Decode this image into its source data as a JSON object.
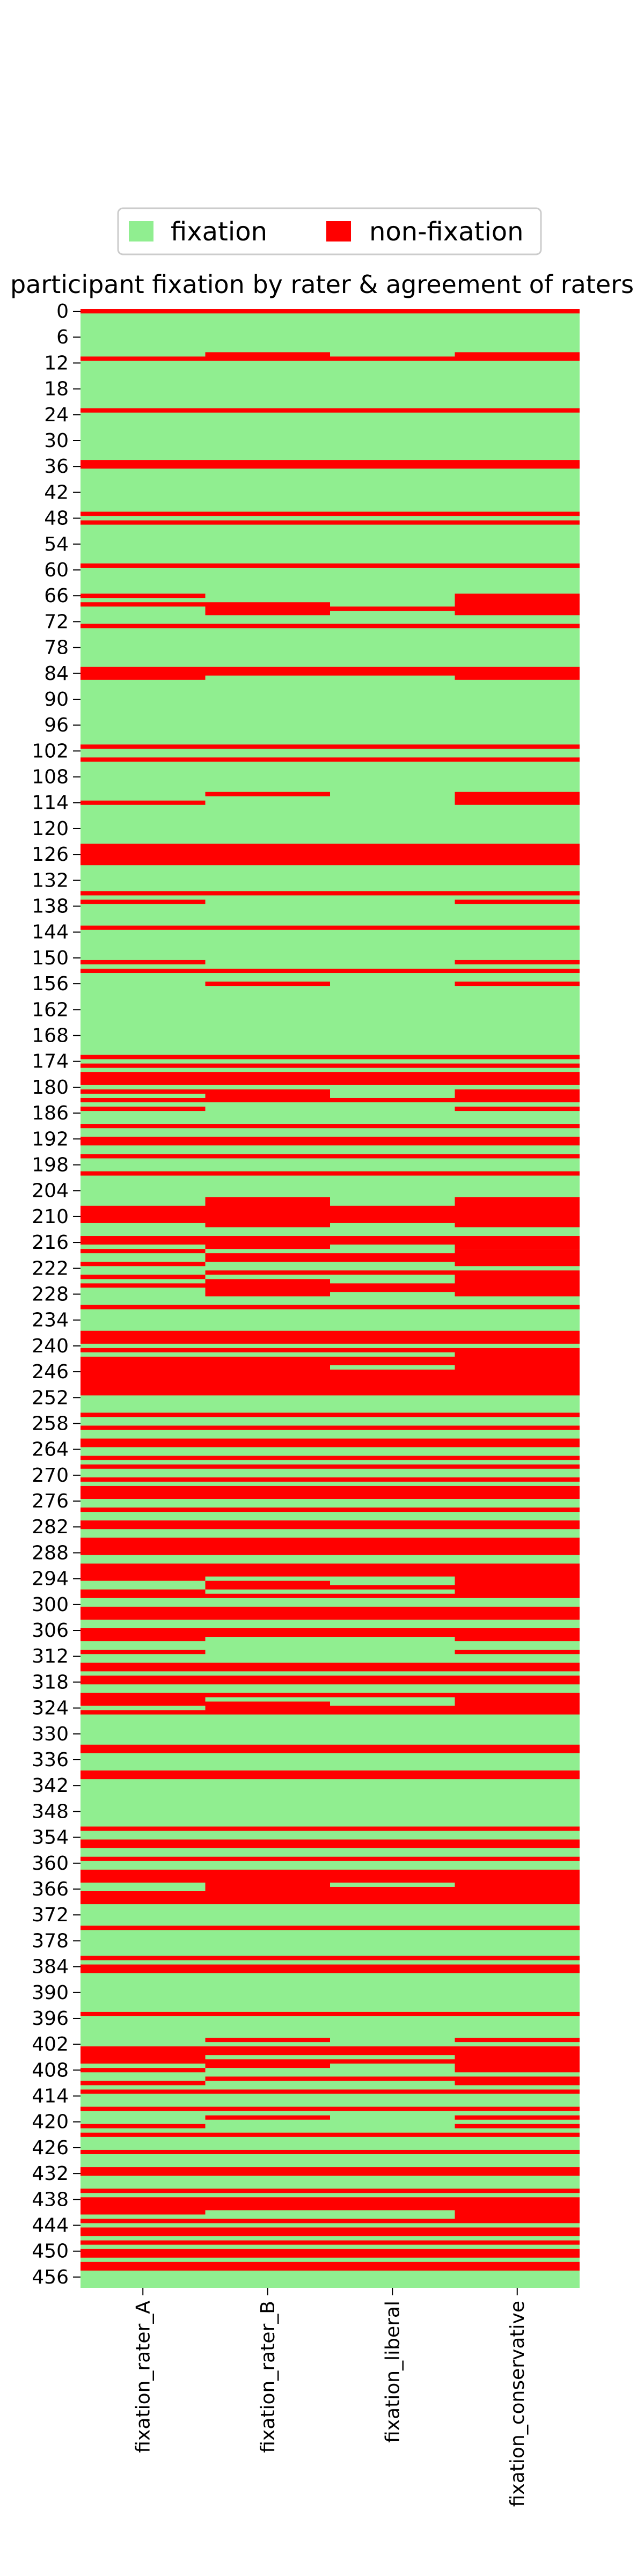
{
  "chart_data": {
    "type": "heatmap",
    "title": "participant fixation by rater & agreement of raters",
    "legend": {
      "placement": "top-center",
      "entries": [
        {
          "label": "fixation",
          "color": "#90ee90"
        },
        {
          "label": "non-fixation",
          "color": "#ff0000"
        }
      ]
    },
    "columns": [
      "fixation_rater_A",
      "fixation_rater_B",
      "fixation_liberal",
      "fixation_conservative"
    ],
    "y_tick_labels": [
      "0",
      "6",
      "12",
      "18",
      "24",
      "30",
      "36",
      "42",
      "48",
      "54",
      "60",
      "66",
      "72",
      "78",
      "84",
      "90",
      "96",
      "102",
      "108",
      "114",
      "120",
      "126",
      "132",
      "138",
      "144",
      "150",
      "156",
      "162",
      "168",
      "174",
      "180",
      "186",
      "192",
      "198",
      "204",
      "210",
      "216",
      "222",
      "228",
      "234",
      "240",
      "246",
      "252",
      "258",
      "264",
      "270",
      "276",
      "282",
      "288",
      "294",
      "300",
      "306",
      "312",
      "318",
      "324",
      "330",
      "336",
      "342",
      "348",
      "354",
      "360",
      "366",
      "372",
      "378",
      "384",
      "390",
      "396",
      "402",
      "408",
      "414",
      "420",
      "426",
      "432",
      "438",
      "444",
      "450",
      "456"
    ],
    "row_count": 459,
    "category_colors": {
      "fixation": "#90ee90",
      "non-fixation": "#ff0000"
    },
    "non_fixation_ranges": {
      "fixation_rater_A": [
        [
          0,
          0
        ],
        [
          11,
          11
        ],
        [
          23,
          23
        ],
        [
          35,
          36
        ],
        [
          47,
          47
        ],
        [
          49,
          49
        ],
        [
          59,
          59
        ],
        [
          66,
          66
        ],
        [
          68,
          68
        ],
        [
          73,
          73
        ],
        [
          83,
          85
        ],
        [
          101,
          101
        ],
        [
          104,
          104
        ],
        [
          114,
          114
        ],
        [
          124,
          128
        ],
        [
          135,
          135
        ],
        [
          137,
          137
        ],
        [
          143,
          143
        ],
        [
          151,
          151
        ],
        [
          153,
          153
        ],
        [
          173,
          173
        ],
        [
          175,
          175
        ],
        [
          177,
          179
        ],
        [
          181,
          181
        ],
        [
          183,
          183
        ],
        [
          185,
          185
        ],
        [
          189,
          189
        ],
        [
          192,
          193
        ],
        [
          196,
          196
        ],
        [
          200,
          200
        ],
        [
          208,
          211
        ],
        [
          215,
          216
        ],
        [
          218,
          218
        ],
        [
          221,
          221
        ],
        [
          224,
          224
        ],
        [
          226,
          226
        ],
        [
          231,
          231
        ],
        [
          237,
          239
        ],
        [
          241,
          241
        ],
        [
          243,
          251
        ],
        [
          256,
          256
        ],
        [
          259,
          259
        ],
        [
          262,
          263
        ],
        [
          266,
          266
        ],
        [
          268,
          268
        ],
        [
          271,
          271
        ],
        [
          273,
          275
        ],
        [
          278,
          278
        ],
        [
          281,
          282
        ],
        [
          285,
          288
        ],
        [
          291,
          294
        ],
        [
          297,
          298
        ],
        [
          301,
          303
        ],
        [
          306,
          308
        ],
        [
          311,
          311
        ],
        [
          314,
          315
        ],
        [
          317,
          318
        ],
        [
          321,
          323
        ],
        [
          325,
          325
        ],
        [
          333,
          334
        ],
        [
          339,
          340
        ],
        [
          352,
          352
        ],
        [
          355,
          356
        ],
        [
          359,
          359
        ],
        [
          362,
          364
        ],
        [
          367,
          369
        ],
        [
          375,
          375
        ],
        [
          382,
          382
        ],
        [
          384,
          385
        ],
        [
          395,
          395
        ],
        [
          403,
          406
        ],
        [
          408,
          408
        ],
        [
          411,
          411
        ],
        [
          413,
          413
        ],
        [
          417,
          417
        ],
        [
          421,
          421
        ],
        [
          423,
          423
        ],
        [
          427,
          427
        ],
        [
          431,
          432
        ],
        [
          436,
          436
        ],
        [
          438,
          441
        ],
        [
          443,
          443
        ],
        [
          445,
          446
        ],
        [
          448,
          448
        ],
        [
          450,
          451
        ],
        [
          453,
          454
        ]
      ],
      "fixation_rater_B": [
        [
          0,
          0
        ],
        [
          10,
          11
        ],
        [
          23,
          23
        ],
        [
          35,
          36
        ],
        [
          47,
          47
        ],
        [
          49,
          49
        ],
        [
          59,
          59
        ],
        [
          68,
          70
        ],
        [
          73,
          73
        ],
        [
          83,
          84
        ],
        [
          101,
          101
        ],
        [
          104,
          104
        ],
        [
          112,
          112
        ],
        [
          124,
          128
        ],
        [
          135,
          135
        ],
        [
          143,
          143
        ],
        [
          153,
          153
        ],
        [
          156,
          156
        ],
        [
          173,
          173
        ],
        [
          175,
          175
        ],
        [
          177,
          179
        ],
        [
          181,
          183
        ],
        [
          189,
          189
        ],
        [
          192,
          193
        ],
        [
          196,
          196
        ],
        [
          200,
          200
        ],
        [
          206,
          212
        ],
        [
          215,
          217
        ],
        [
          219,
          220
        ],
        [
          223,
          223
        ],
        [
          225,
          228
        ],
        [
          231,
          231
        ],
        [
          237,
          239
        ],
        [
          241,
          241
        ],
        [
          243,
          251
        ],
        [
          256,
          256
        ],
        [
          259,
          259
        ],
        [
          262,
          263
        ],
        [
          266,
          266
        ],
        [
          268,
          268
        ],
        [
          271,
          271
        ],
        [
          273,
          275
        ],
        [
          278,
          278
        ],
        [
          281,
          282
        ],
        [
          285,
          288
        ],
        [
          291,
          293
        ],
        [
          295,
          296
        ],
        [
          298,
          298
        ],
        [
          301,
          303
        ],
        [
          306,
          307
        ],
        [
          314,
          315
        ],
        [
          317,
          318
        ],
        [
          321,
          321
        ],
        [
          323,
          325
        ],
        [
          333,
          334
        ],
        [
          339,
          340
        ],
        [
          352,
          352
        ],
        [
          355,
          356
        ],
        [
          359,
          359
        ],
        [
          362,
          366
        ],
        [
          367,
          369
        ],
        [
          375,
          375
        ],
        [
          382,
          382
        ],
        [
          384,
          385
        ],
        [
          395,
          395
        ],
        [
          401,
          401
        ],
        [
          403,
          404
        ],
        [
          406,
          407
        ],
        [
          410,
          410
        ],
        [
          413,
          413
        ],
        [
          417,
          417
        ],
        [
          419,
          419
        ],
        [
          423,
          423
        ],
        [
          427,
          427
        ],
        [
          431,
          432
        ],
        [
          436,
          436
        ],
        [
          438,
          440
        ],
        [
          443,
          443
        ],
        [
          445,
          446
        ],
        [
          448,
          448
        ],
        [
          450,
          451
        ],
        [
          453,
          454
        ]
      ],
      "fixation_liberal": [
        [
          0,
          0
        ],
        [
          11,
          11
        ],
        [
          23,
          23
        ],
        [
          35,
          36
        ],
        [
          47,
          47
        ],
        [
          49,
          49
        ],
        [
          59,
          59
        ],
        [
          69,
          69
        ],
        [
          73,
          73
        ],
        [
          83,
          84
        ],
        [
          101,
          101
        ],
        [
          104,
          104
        ],
        [
          124,
          128
        ],
        [
          135,
          135
        ],
        [
          143,
          143
        ],
        [
          153,
          153
        ],
        [
          173,
          173
        ],
        [
          175,
          175
        ],
        [
          177,
          179
        ],
        [
          183,
          183
        ],
        [
          189,
          189
        ],
        [
          192,
          193
        ],
        [
          196,
          196
        ],
        [
          200,
          200
        ],
        [
          208,
          211
        ],
        [
          215,
          216
        ],
        [
          219,
          220
        ],
        [
          223,
          223
        ],
        [
          226,
          227
        ],
        [
          231,
          231
        ],
        [
          237,
          239
        ],
        [
          241,
          241
        ],
        [
          243,
          244
        ],
        [
          246,
          251
        ],
        [
          256,
          256
        ],
        [
          259,
          259
        ],
        [
          262,
          263
        ],
        [
          266,
          266
        ],
        [
          268,
          268
        ],
        [
          271,
          271
        ],
        [
          273,
          275
        ],
        [
          278,
          278
        ],
        [
          281,
          282
        ],
        [
          285,
          288
        ],
        [
          291,
          293
        ],
        [
          296,
          296
        ],
        [
          298,
          298
        ],
        [
          301,
          303
        ],
        [
          306,
          307
        ],
        [
          314,
          315
        ],
        [
          317,
          318
        ],
        [
          321,
          321
        ],
        [
          324,
          325
        ],
        [
          333,
          334
        ],
        [
          339,
          340
        ],
        [
          352,
          352
        ],
        [
          355,
          356
        ],
        [
          359,
          359
        ],
        [
          362,
          364
        ],
        [
          366,
          366
        ],
        [
          367,
          369
        ],
        [
          375,
          375
        ],
        [
          382,
          382
        ],
        [
          384,
          385
        ],
        [
          395,
          395
        ],
        [
          403,
          404
        ],
        [
          406,
          406
        ],
        [
          410,
          410
        ],
        [
          413,
          413
        ],
        [
          417,
          417
        ],
        [
          423,
          423
        ],
        [
          427,
          427
        ],
        [
          431,
          432
        ],
        [
          436,
          436
        ],
        [
          438,
          440
        ],
        [
          443,
          443
        ],
        [
          445,
          446
        ],
        [
          448,
          448
        ],
        [
          450,
          451
        ],
        [
          453,
          454
        ]
      ],
      "fixation_conservative": [
        [
          0,
          0
        ],
        [
          10,
          11
        ],
        [
          23,
          23
        ],
        [
          35,
          36
        ],
        [
          47,
          47
        ],
        [
          49,
          49
        ],
        [
          59,
          59
        ],
        [
          66,
          70
        ],
        [
          73,
          73
        ],
        [
          83,
          85
        ],
        [
          101,
          101
        ],
        [
          104,
          104
        ],
        [
          112,
          114
        ],
        [
          124,
          128
        ],
        [
          135,
          135
        ],
        [
          137,
          137
        ],
        [
          143,
          143
        ],
        [
          151,
          151
        ],
        [
          153,
          153
        ],
        [
          156,
          156
        ],
        [
          173,
          173
        ],
        [
          175,
          175
        ],
        [
          177,
          179
        ],
        [
          181,
          183
        ],
        [
          185,
          185
        ],
        [
          189,
          189
        ],
        [
          192,
          193
        ],
        [
          196,
          196
        ],
        [
          200,
          200
        ],
        [
          206,
          212
        ],
        [
          215,
          217
        ],
        [
          218,
          221
        ],
        [
          223,
          228
        ],
        [
          231,
          231
        ],
        [
          237,
          239
        ],
        [
          241,
          251
        ],
        [
          256,
          256
        ],
        [
          259,
          259
        ],
        [
          262,
          263
        ],
        [
          266,
          266
        ],
        [
          268,
          268
        ],
        [
          271,
          271
        ],
        [
          273,
          275
        ],
        [
          278,
          278
        ],
        [
          281,
          282
        ],
        [
          285,
          288
        ],
        [
          291,
          298
        ],
        [
          301,
          303
        ],
        [
          306,
          308
        ],
        [
          311,
          311
        ],
        [
          314,
          315
        ],
        [
          317,
          318
        ],
        [
          321,
          325
        ],
        [
          333,
          334
        ],
        [
          339,
          340
        ],
        [
          352,
          352
        ],
        [
          355,
          356
        ],
        [
          359,
          359
        ],
        [
          362,
          369
        ],
        [
          375,
          375
        ],
        [
          382,
          382
        ],
        [
          384,
          385
        ],
        [
          395,
          395
        ],
        [
          401,
          401
        ],
        [
          403,
          408
        ],
        [
          410,
          411
        ],
        [
          413,
          413
        ],
        [
          417,
          417
        ],
        [
          419,
          419
        ],
        [
          421,
          421
        ],
        [
          423,
          423
        ],
        [
          427,
          427
        ],
        [
          431,
          432
        ],
        [
          436,
          436
        ],
        [
          438,
          443
        ],
        [
          445,
          446
        ],
        [
          448,
          448
        ],
        [
          450,
          451
        ],
        [
          453,
          454
        ]
      ]
    }
  }
}
